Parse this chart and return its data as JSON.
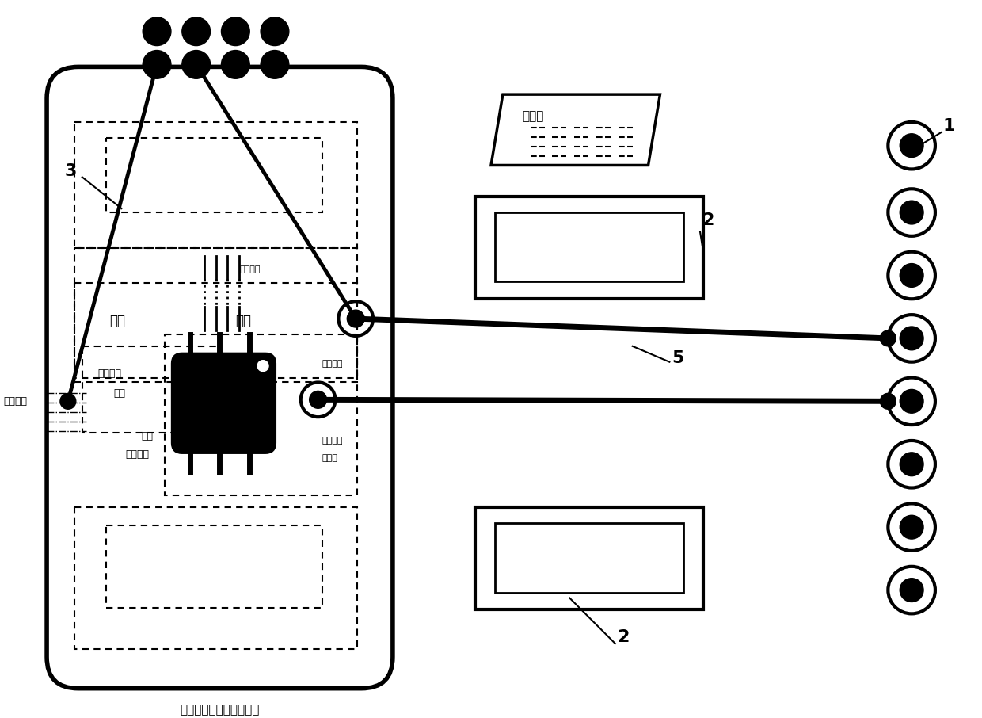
{
  "bg_color": "#ffffff",
  "fig_width": 12.4,
  "fig_height": 9.06,
  "labels": {
    "main_box": "片外接口单元（测试板）",
    "signal_line": "信号线",
    "digital_port": "数字接口",
    "calib": "校准",
    "module": "模块",
    "power_module_1": "电源偏置",
    "power_module_2": "模块",
    "rf_module": "射频模块",
    "rf_port": "射频接口",
    "rf_circuit": "射频",
    "rf_circuit2": "电路关头",
    "analog_port": "模拟接口",
    "rf_power": "射频功率",
    "rf_detector": "探测器",
    "label1": "1",
    "label2": "2",
    "label3": "3",
    "label5": "5"
  }
}
